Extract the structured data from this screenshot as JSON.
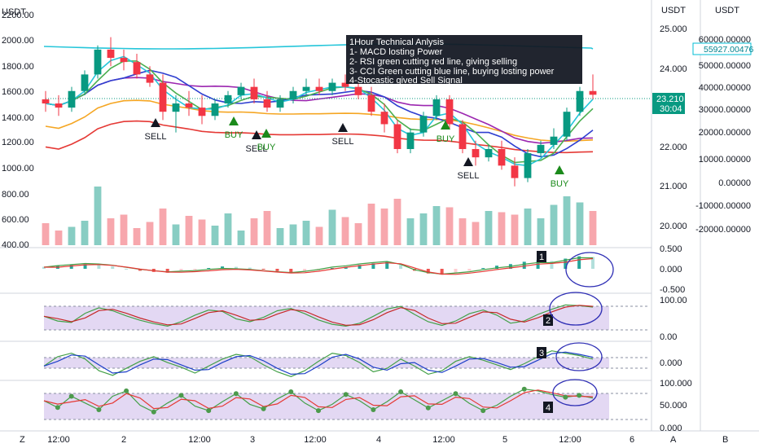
{
  "header": {
    "currency_left": "USDT",
    "currency_right": "USDT",
    "currency_far": "USDT"
  },
  "info_box": {
    "lines": [
      "1Hour Technical Anlysis",
      "1- MACD losting Power",
      "2- RSI green cutting red line, giving selling",
      "3- CCI Green cutting blue line, buying losting power",
      "4-Stocastic gived Sell Signal"
    ]
  },
  "axes": {
    "left_ticks": [
      "2200.00",
      "2000.00",
      "1800.00",
      "1600.00",
      "1400.00",
      "1200.00",
      "1000.00",
      "800.00",
      "600.00",
      "400.00"
    ],
    "right_ticks": [
      "25.000",
      "24.000",
      "22.000",
      "21.000",
      "20.000"
    ],
    "far_ticks": [
      "60000.00000",
      "50000.00000",
      "40000.00000",
      "30000.00000",
      "20000.00000",
      "10000.00000",
      "0.00000",
      "-10000.00000",
      "-20000.00000"
    ],
    "x_ticks": [
      "12:00",
      "2",
      "12:00",
      "3",
      "12:00",
      "4",
      "12:00",
      "5",
      "12:00",
      "6"
    ],
    "corner_labels": [
      "Z",
      "A",
      "B"
    ]
  },
  "price_badges": {
    "price": "23.210",
    "countdown": "30:04",
    "volume": "55927.00476",
    "price_color": "#089981",
    "volume_color": "#00bcd4"
  },
  "signals": [
    {
      "type": "SELL",
      "x": "2 ~03:00"
    },
    {
      "type": "BUY",
      "x": "2 ~14:00"
    },
    {
      "type": "SELL",
      "x": "3 ~01:00"
    },
    {
      "type": "BUY",
      "x": "3 ~03:00"
    },
    {
      "type": "SELL",
      "x": "3 ~15:00"
    },
    {
      "type": "BUY",
      "x": "4 ~17:00"
    },
    {
      "type": "SELL",
      "x": "4 ~19:00"
    },
    {
      "type": "BUY",
      "x": "5 ~15:00"
    }
  ],
  "sub_panels": [
    {
      "id": "macd",
      "number": "1",
      "ticks": [
        "0.500",
        "0.000",
        "-0.500"
      ]
    },
    {
      "id": "rsi",
      "number": "2",
      "ticks": [
        "100.00",
        "0.00"
      ]
    },
    {
      "id": "cci",
      "number": "3",
      "ticks": [
        "0.000"
      ]
    },
    {
      "id": "stoch",
      "number": "4",
      "ticks": [
        "100.000",
        "50.000",
        "0.000"
      ]
    }
  ],
  "colors": {
    "up": "#089981",
    "down": "#f23645",
    "vol_up": "#88cdc3",
    "vol_down": "#f7a7ad",
    "cyan_line": "#26c6da",
    "ma_red": "#e53935",
    "ma_orange": "#f5a623",
    "ma_blue": "#2f3fd0",
    "ma_purple": "#9c27b0",
    "ma_green": "#4caf50",
    "ma_teal": "#26c6da",
    "band_fill": "#d7c8ee",
    "annotation": "#2f2fb5"
  },
  "chart_data": {
    "type": "candlestick",
    "price_axis": {
      "ylim": [
        19.6,
        25.3
      ]
    },
    "volume_axis": {
      "ylim": [
        -25000,
        65000
      ]
    },
    "candles": [
      {
        "o": 23.1,
        "h": 23.3,
        "l": 22.8,
        "c": 23.0
      },
      {
        "o": 23.0,
        "h": 23.2,
        "l": 22.7,
        "c": 22.9
      },
      {
        "o": 22.9,
        "h": 23.4,
        "l": 22.8,
        "c": 23.3
      },
      {
        "o": 23.3,
        "h": 23.8,
        "l": 23.2,
        "c": 23.7
      },
      {
        "o": 23.7,
        "h": 24.4,
        "l": 23.6,
        "c": 24.3
      },
      {
        "o": 24.3,
        "h": 24.6,
        "l": 23.9,
        "c": 24.1
      },
      {
        "o": 24.1,
        "h": 24.3,
        "l": 23.8,
        "c": 24.0
      },
      {
        "o": 24.0,
        "h": 24.2,
        "l": 23.6,
        "c": 23.7
      },
      {
        "o": 23.7,
        "h": 23.9,
        "l": 23.4,
        "c": 23.5
      },
      {
        "o": 23.5,
        "h": 23.7,
        "l": 22.6,
        "c": 22.8
      },
      {
        "o": 22.8,
        "h": 23.2,
        "l": 22.3,
        "c": 23.0
      },
      {
        "o": 23.0,
        "h": 23.3,
        "l": 22.7,
        "c": 22.9
      },
      {
        "o": 22.9,
        "h": 23.2,
        "l": 22.5,
        "c": 22.7
      },
      {
        "o": 22.7,
        "h": 23.1,
        "l": 22.6,
        "c": 23.0
      },
      {
        "o": 23.0,
        "h": 23.3,
        "l": 22.9,
        "c": 23.2
      },
      {
        "o": 23.2,
        "h": 23.5,
        "l": 23.1,
        "c": 23.4
      },
      {
        "o": 23.4,
        "h": 23.6,
        "l": 23.0,
        "c": 23.1
      },
      {
        "o": 23.1,
        "h": 23.3,
        "l": 22.8,
        "c": 22.9
      },
      {
        "o": 22.9,
        "h": 23.2,
        "l": 22.8,
        "c": 23.1
      },
      {
        "o": 23.1,
        "h": 23.4,
        "l": 23.0,
        "c": 23.3
      },
      {
        "o": 23.3,
        "h": 23.6,
        "l": 23.2,
        "c": 23.4
      },
      {
        "o": 23.4,
        "h": 23.6,
        "l": 23.2,
        "c": 23.3
      },
      {
        "o": 23.3,
        "h": 23.6,
        "l": 23.2,
        "c": 23.5
      },
      {
        "o": 23.5,
        "h": 23.7,
        "l": 23.3,
        "c": 23.4
      },
      {
        "o": 23.4,
        "h": 23.5,
        "l": 23.1,
        "c": 23.2
      },
      {
        "o": 23.2,
        "h": 23.4,
        "l": 22.7,
        "c": 22.8
      },
      {
        "o": 22.8,
        "h": 23.0,
        "l": 22.3,
        "c": 22.5
      },
      {
        "o": 22.5,
        "h": 22.6,
        "l": 21.8,
        "c": 21.9
      },
      {
        "o": 21.9,
        "h": 22.4,
        "l": 21.8,
        "c": 22.3
      },
      {
        "o": 22.3,
        "h": 22.8,
        "l": 22.2,
        "c": 22.7
      },
      {
        "o": 22.7,
        "h": 23.2,
        "l": 22.6,
        "c": 23.1
      },
      {
        "o": 23.1,
        "h": 23.2,
        "l": 22.4,
        "c": 22.5
      },
      {
        "o": 22.5,
        "h": 22.6,
        "l": 21.8,
        "c": 21.9
      },
      {
        "o": 21.9,
        "h": 22.1,
        "l": 21.5,
        "c": 21.7
      },
      {
        "o": 21.7,
        "h": 22.0,
        "l": 21.6,
        "c": 21.9
      },
      {
        "o": 21.9,
        "h": 22.1,
        "l": 21.4,
        "c": 21.5
      },
      {
        "o": 21.5,
        "h": 21.7,
        "l": 21.0,
        "c": 21.2
      },
      {
        "o": 21.2,
        "h": 21.9,
        "l": 21.1,
        "c": 21.8
      },
      {
        "o": 21.8,
        "h": 22.1,
        "l": 21.7,
        "c": 22.0
      },
      {
        "o": 22.0,
        "h": 22.4,
        "l": 21.9,
        "c": 22.2
      },
      {
        "o": 22.2,
        "h": 22.9,
        "l": 22.1,
        "c": 22.8
      },
      {
        "o": 22.8,
        "h": 23.4,
        "l": 22.7,
        "c": 23.3
      },
      {
        "o": 23.3,
        "h": 23.7,
        "l": 23.1,
        "c": 23.21
      }
    ],
    "volume": [
      18,
      12,
      15,
      20,
      48,
      22,
      25,
      14,
      19,
      30,
      17,
      24,
      21,
      16,
      26,
      12,
      22,
      28,
      14,
      17,
      20,
      15,
      29,
      23,
      18,
      34,
      30,
      38,
      22,
      26,
      32,
      31,
      22,
      19,
      28,
      27,
      25,
      30,
      22,
      33,
      40,
      35,
      28
    ],
    "macd": {
      "hist": [
        0.05,
        0.08,
        0.1,
        0.12,
        0.1,
        0.06,
        0.0,
        -0.05,
        -0.08,
        -0.1,
        -0.06,
        -0.03,
        0.02,
        0.06,
        0.05,
        0.03,
        -0.02,
        -0.06,
        -0.1,
        -0.08,
        -0.04,
        0.02,
        0.05,
        0.1,
        0.14,
        0.18,
        0.1,
        -0.05,
        -0.12,
        -0.15,
        -0.1,
        -0.05,
        0.02,
        0.08,
        0.12,
        0.18,
        0.22,
        0.2,
        0.26,
        0.32,
        0.3
      ]
    },
    "rsi": {
      "series": [
        55,
        42,
        38,
        63,
        78,
        70,
        56,
        44,
        35,
        28,
        40,
        58,
        72,
        68,
        48,
        40,
        52,
        70,
        76,
        62,
        45,
        33,
        28,
        36,
        55,
        75,
        82,
        60,
        40,
        30,
        42,
        62,
        72,
        58,
        36,
        42,
        60,
        74,
        86,
        84,
        80
      ]
    },
    "cci": {
      "series": [
        -20,
        60,
        90,
        40,
        -60,
        -100,
        -40,
        20,
        60,
        10,
        -30,
        -80,
        -20,
        40,
        80,
        60,
        -10,
        -70,
        -110,
        -60,
        20,
        90,
        70,
        10,
        -70,
        -40,
        40,
        -20,
        -90,
        -60,
        20,
        60,
        30,
        -10,
        -50,
        0,
        60,
        110,
        90,
        70,
        40
      ]
    },
    "stoch": {
      "series": [
        60,
        45,
        70,
        55,
        40,
        70,
        82,
        50,
        35,
        55,
        72,
        48,
        38,
        58,
        76,
        52,
        42,
        64,
        80,
        55,
        38,
        52,
        74,
        60,
        40,
        58,
        80,
        62,
        44,
        60,
        76,
        54,
        38,
        50,
        70,
        86,
        82,
        74,
        68,
        72,
        66
      ]
    },
    "annotations": [
      "1",
      "2",
      "3",
      "4"
    ]
  }
}
